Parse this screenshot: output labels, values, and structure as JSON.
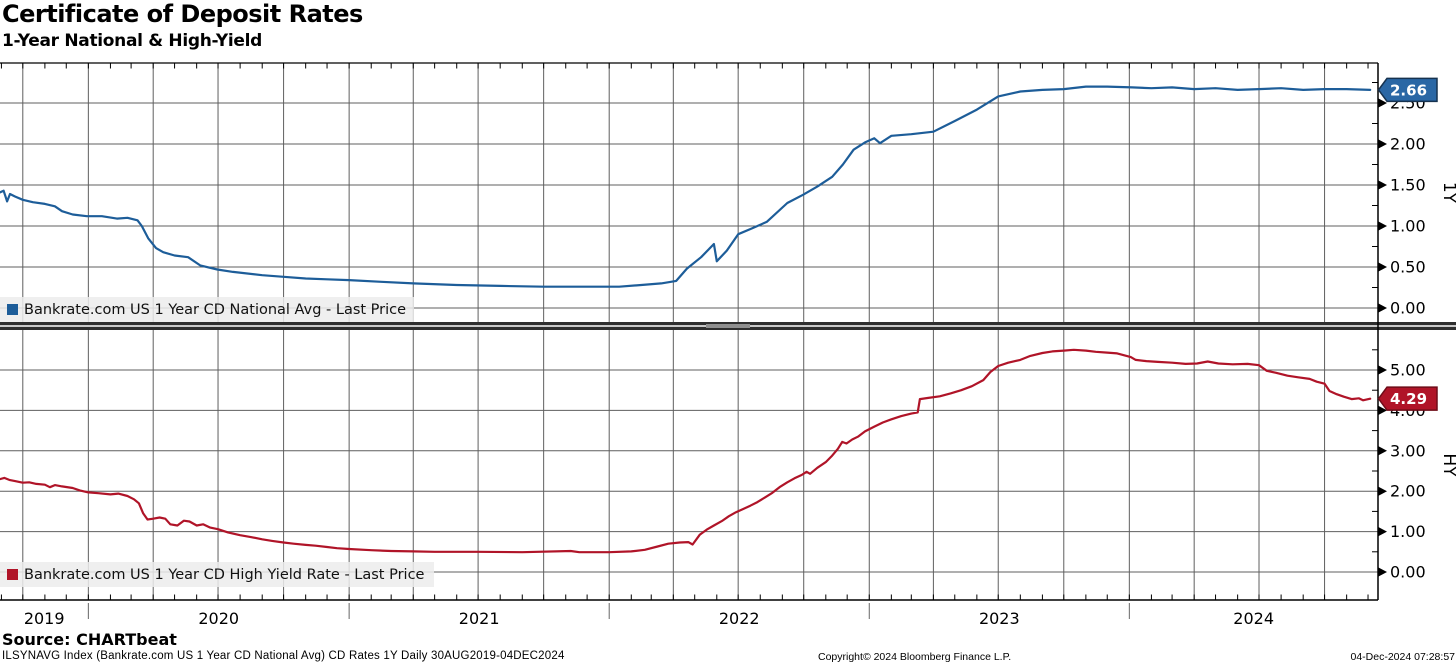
{
  "header": {
    "title": "Certificate of Deposit Rates",
    "subtitle": "1-Year National & High-Yield"
  },
  "footer": {
    "source": "Source: CHARTbeat",
    "descriptor": "ILSYNAVG Index (Bankrate.com US 1 Year CD National Avg) CD Rates 1Y  Daily 30AUG2019-04DEC2024",
    "copyright": "Copyright© 2024 Bloomberg Finance L.P.",
    "timestamp": "04-Dec-2024 07:28:57"
  },
  "chart_data": {
    "type": "line",
    "title": "Certificate of Deposit Rates",
    "subtitle": "1-Year National & High-Yield",
    "x_axis": {
      "start_date": "2019-08-30",
      "end_date": "2024-12-04",
      "years": [
        "2019",
        "2020",
        "2021",
        "2022",
        "2023",
        "2024"
      ],
      "gridlines": "quarterly",
      "minor_ticks": "monthly"
    },
    "panels": [
      {
        "id": "national-avg",
        "axis_label": "1Y",
        "legend": "Bankrate.com US 1 Year CD National Avg - Last Price",
        "line_color": "#1d5d99",
        "badge_fill": "#2a67a5",
        "badge_stroke": "#16324f",
        "last_price": "2.66",
        "y_ticks": [
          "0.00",
          "0.50",
          "1.00",
          "1.50",
          "2.00",
          "2.50"
        ],
        "y_tick_values": [
          0,
          0.5,
          1.0,
          1.5,
          2.0,
          2.5
        ],
        "y_minor_values": [
          0.25,
          0.75,
          1.25,
          1.75,
          2.25,
          2.75
        ],
        "ylim": [
          -0.17,
          3.04
        ],
        "series": {
          "name": "Bankrate.com US 1 Year CD National Avg",
          "points": [
            [
              "2019-08-30",
              1.41
            ],
            [
              "2019-09-04",
              1.43
            ],
            [
              "2019-09-09",
              1.3
            ],
            [
              "2019-09-13",
              1.39
            ],
            [
              "2019-09-20",
              1.36
            ],
            [
              "2019-10-01",
              1.32
            ],
            [
              "2019-10-15",
              1.29
            ],
            [
              "2019-11-01",
              1.27
            ],
            [
              "2019-11-15",
              1.24
            ],
            [
              "2019-11-25",
              1.18
            ],
            [
              "2019-12-10",
              1.14
            ],
            [
              "2019-12-30",
              1.12
            ],
            [
              "2020-01-20",
              1.12
            ],
            [
              "2020-02-10",
              1.09
            ],
            [
              "2020-02-25",
              1.1
            ],
            [
              "2020-03-10",
              1.07
            ],
            [
              "2020-03-16",
              1.0
            ],
            [
              "2020-03-25",
              0.85
            ],
            [
              "2020-04-05",
              0.73
            ],
            [
              "2020-04-15",
              0.68
            ],
            [
              "2020-05-01",
              0.64
            ],
            [
              "2020-05-20",
              0.62
            ],
            [
              "2020-06-06",
              0.52
            ],
            [
              "2020-06-30",
              0.47
            ],
            [
              "2020-07-22",
              0.44
            ],
            [
              "2020-09-01",
              0.4
            ],
            [
              "2020-10-01",
              0.38
            ],
            [
              "2020-11-01",
              0.36
            ],
            [
              "2020-12-01",
              0.35
            ],
            [
              "2021-01-01",
              0.34
            ],
            [
              "2021-02-15",
              0.32
            ],
            [
              "2021-04-01",
              0.3
            ],
            [
              "2021-06-01",
              0.28
            ],
            [
              "2021-08-01",
              0.27
            ],
            [
              "2021-10-01",
              0.26
            ],
            [
              "2021-12-01",
              0.26
            ],
            [
              "2022-01-15",
              0.26
            ],
            [
              "2022-02-15",
              0.28
            ],
            [
              "2022-03-15",
              0.3
            ],
            [
              "2022-04-05",
              0.33
            ],
            [
              "2022-04-20",
              0.48
            ],
            [
              "2022-05-10",
              0.62
            ],
            [
              "2022-05-28",
              0.78
            ],
            [
              "2022-06-01",
              0.57
            ],
            [
              "2022-06-15",
              0.7
            ],
            [
              "2022-07-01",
              0.9
            ],
            [
              "2022-07-20",
              0.97
            ],
            [
              "2022-08-10",
              1.05
            ],
            [
              "2022-09-08",
              1.28
            ],
            [
              "2022-09-30",
              1.38
            ],
            [
              "2022-10-20",
              1.48
            ],
            [
              "2022-11-10",
              1.6
            ],
            [
              "2022-11-25",
              1.75
            ],
            [
              "2022-12-10",
              1.93
            ],
            [
              "2022-12-26",
              2.02
            ],
            [
              "2023-01-08",
              2.07
            ],
            [
              "2023-01-16",
              2.01
            ],
            [
              "2023-02-01",
              2.1
            ],
            [
              "2023-03-01",
              2.12
            ],
            [
              "2023-04-01",
              2.15
            ],
            [
              "2023-05-01",
              2.28
            ],
            [
              "2023-06-01",
              2.42
            ],
            [
              "2023-07-01",
              2.58
            ],
            [
              "2023-08-01",
              2.64
            ],
            [
              "2023-09-01",
              2.66
            ],
            [
              "2023-10-01",
              2.67
            ],
            [
              "2023-11-01",
              2.7
            ],
            [
              "2023-12-01",
              2.7
            ],
            [
              "2024-01-05",
              2.69
            ],
            [
              "2024-02-01",
              2.68
            ],
            [
              "2024-03-01",
              2.69
            ],
            [
              "2024-04-01",
              2.67
            ],
            [
              "2024-05-01",
              2.68
            ],
            [
              "2024-06-01",
              2.66
            ],
            [
              "2024-07-01",
              2.67
            ],
            [
              "2024-08-01",
              2.68
            ],
            [
              "2024-09-01",
              2.66
            ],
            [
              "2024-10-01",
              2.67
            ],
            [
              "2024-11-01",
              2.67
            ],
            [
              "2024-12-04",
              2.66
            ]
          ]
        }
      },
      {
        "id": "high-yield",
        "axis_label": "HY",
        "legend": "Bankrate.com US 1 Year CD High Yield Rate - Last Price",
        "line_color": "#b01428",
        "badge_fill": "#b01428",
        "badge_stroke": "#6e0c18",
        "last_price": "4.29",
        "y_ticks": [
          "0.00",
          "1.00",
          "2.00",
          "3.00",
          "4.00",
          "5.00"
        ],
        "y_tick_values": [
          0,
          1.0,
          2.0,
          3.0,
          4.0,
          5.0
        ],
        "y_minor_values": [
          0.5,
          1.5,
          2.5,
          3.5,
          4.5,
          5.5
        ],
        "ylim": [
          -0.69,
          5.99
        ],
        "series": {
          "name": "Bankrate.com US 1 Year CD High Yield Rate",
          "points": [
            [
              "2019-08-30",
              2.3
            ],
            [
              "2019-09-05",
              2.33
            ],
            [
              "2019-09-12",
              2.28
            ],
            [
              "2019-09-20",
              2.25
            ],
            [
              "2019-10-01",
              2.21
            ],
            [
              "2019-10-10",
              2.22
            ],
            [
              "2019-10-20",
              2.18
            ],
            [
              "2019-11-01",
              2.16
            ],
            [
              "2019-11-08",
              2.1
            ],
            [
              "2019-11-15",
              2.15
            ],
            [
              "2019-11-25",
              2.12
            ],
            [
              "2019-12-10",
              2.08
            ],
            [
              "2019-12-20",
              2.02
            ],
            [
              "2020-01-01",
              1.97
            ],
            [
              "2020-01-15",
              1.95
            ],
            [
              "2020-02-01",
              1.92
            ],
            [
              "2020-02-12",
              1.94
            ],
            [
              "2020-02-25",
              1.88
            ],
            [
              "2020-03-05",
              1.8
            ],
            [
              "2020-03-12",
              1.7
            ],
            [
              "2020-03-18",
              1.45
            ],
            [
              "2020-03-24",
              1.3
            ],
            [
              "2020-04-01",
              1.32
            ],
            [
              "2020-04-10",
              1.35
            ],
            [
              "2020-04-18",
              1.32
            ],
            [
              "2020-04-25",
              1.18
            ],
            [
              "2020-05-05",
              1.15
            ],
            [
              "2020-05-14",
              1.27
            ],
            [
              "2020-05-22",
              1.25
            ],
            [
              "2020-06-01",
              1.15
            ],
            [
              "2020-06-10",
              1.18
            ],
            [
              "2020-06-20",
              1.1
            ],
            [
              "2020-07-01",
              1.06
            ],
            [
              "2020-07-15",
              0.98
            ],
            [
              "2020-08-01",
              0.91
            ],
            [
              "2020-08-15",
              0.87
            ],
            [
              "2020-09-01",
              0.81
            ],
            [
              "2020-09-15",
              0.77
            ],
            [
              "2020-10-01",
              0.73
            ],
            [
              "2020-10-15",
              0.7
            ],
            [
              "2020-11-01",
              0.67
            ],
            [
              "2020-11-15",
              0.65
            ],
            [
              "2020-12-01",
              0.62
            ],
            [
              "2020-12-15",
              0.59
            ],
            [
              "2021-01-01",
              0.57
            ],
            [
              "2021-02-01",
              0.54
            ],
            [
              "2021-03-01",
              0.52
            ],
            [
              "2021-04-01",
              0.51
            ],
            [
              "2021-05-01",
              0.5
            ],
            [
              "2021-07-01",
              0.5
            ],
            [
              "2021-09-01",
              0.49
            ],
            [
              "2021-11-08",
              0.52
            ],
            [
              "2021-11-20",
              0.49
            ],
            [
              "2022-01-01",
              0.49
            ],
            [
              "2022-02-01",
              0.51
            ],
            [
              "2022-02-20",
              0.55
            ],
            [
              "2022-03-10",
              0.63
            ],
            [
              "2022-03-25",
              0.7
            ],
            [
              "2022-04-10",
              0.73
            ],
            [
              "2022-04-22",
              0.74
            ],
            [
              "2022-04-28",
              0.68
            ],
            [
              "2022-05-08",
              0.92
            ],
            [
              "2022-05-18",
              1.05
            ],
            [
              "2022-05-28",
              1.15
            ],
            [
              "2022-06-08",
              1.26
            ],
            [
              "2022-06-18",
              1.38
            ],
            [
              "2022-06-28",
              1.48
            ],
            [
              "2022-07-08",
              1.56
            ],
            [
              "2022-07-18",
              1.64
            ],
            [
              "2022-07-28",
              1.73
            ],
            [
              "2022-08-08",
              1.85
            ],
            [
              "2022-08-18",
              1.96
            ],
            [
              "2022-08-28",
              2.1
            ],
            [
              "2022-09-08",
              2.22
            ],
            [
              "2022-09-18",
              2.32
            ],
            [
              "2022-09-28",
              2.4
            ],
            [
              "2022-10-05",
              2.48
            ],
            [
              "2022-10-10",
              2.43
            ],
            [
              "2022-10-20",
              2.58
            ],
            [
              "2022-11-01",
              2.72
            ],
            [
              "2022-11-10",
              2.88
            ],
            [
              "2022-11-18",
              3.05
            ],
            [
              "2022-11-24",
              3.22
            ],
            [
              "2022-11-30",
              3.18
            ],
            [
              "2022-12-08",
              3.28
            ],
            [
              "2022-12-16",
              3.35
            ],
            [
              "2022-12-26",
              3.48
            ],
            [
              "2023-01-08",
              3.6
            ],
            [
              "2023-01-20",
              3.7
            ],
            [
              "2023-02-01",
              3.78
            ],
            [
              "2023-02-15",
              3.86
            ],
            [
              "2023-03-01",
              3.92
            ],
            [
              "2023-03-10",
              3.95
            ],
            [
              "2023-03-13",
              4.28
            ],
            [
              "2023-03-25",
              4.31
            ],
            [
              "2023-04-10",
              4.35
            ],
            [
              "2023-04-25",
              4.42
            ],
            [
              "2023-05-10",
              4.5
            ],
            [
              "2023-05-25",
              4.6
            ],
            [
              "2023-06-10",
              4.75
            ],
            [
              "2023-06-20",
              4.95
            ],
            [
              "2023-07-01",
              5.1
            ],
            [
              "2023-07-15",
              5.18
            ],
            [
              "2023-08-01",
              5.25
            ],
            [
              "2023-08-15",
              5.35
            ],
            [
              "2023-09-01",
              5.42
            ],
            [
              "2023-09-15",
              5.46
            ],
            [
              "2023-10-01",
              5.48
            ],
            [
              "2023-10-15",
              5.5
            ],
            [
              "2023-11-01",
              5.48
            ],
            [
              "2023-11-15",
              5.45
            ],
            [
              "2023-12-01",
              5.43
            ],
            [
              "2023-12-15",
              5.41
            ],
            [
              "2024-01-03",
              5.32
            ],
            [
              "2024-01-10",
              5.25
            ],
            [
              "2024-01-25",
              5.22
            ],
            [
              "2024-02-10",
              5.2
            ],
            [
              "2024-03-01",
              5.18
            ],
            [
              "2024-03-20",
              5.15
            ],
            [
              "2024-04-05",
              5.16
            ],
            [
              "2024-04-20",
              5.21
            ],
            [
              "2024-05-05",
              5.16
            ],
            [
              "2024-05-25",
              5.14
            ],
            [
              "2024-06-15",
              5.15
            ],
            [
              "2024-07-01",
              5.12
            ],
            [
              "2024-07-12",
              4.98
            ],
            [
              "2024-07-25",
              4.93
            ],
            [
              "2024-08-10",
              4.86
            ],
            [
              "2024-08-25",
              4.82
            ],
            [
              "2024-09-10",
              4.78
            ],
            [
              "2024-09-20",
              4.71
            ],
            [
              "2024-10-01",
              4.66
            ],
            [
              "2024-10-08",
              4.48
            ],
            [
              "2024-10-18",
              4.4
            ],
            [
              "2024-10-28",
              4.34
            ],
            [
              "2024-11-08",
              4.28
            ],
            [
              "2024-11-18",
              4.3
            ],
            [
              "2024-11-24",
              4.25
            ],
            [
              "2024-12-04",
              4.29
            ]
          ]
        }
      }
    ]
  }
}
